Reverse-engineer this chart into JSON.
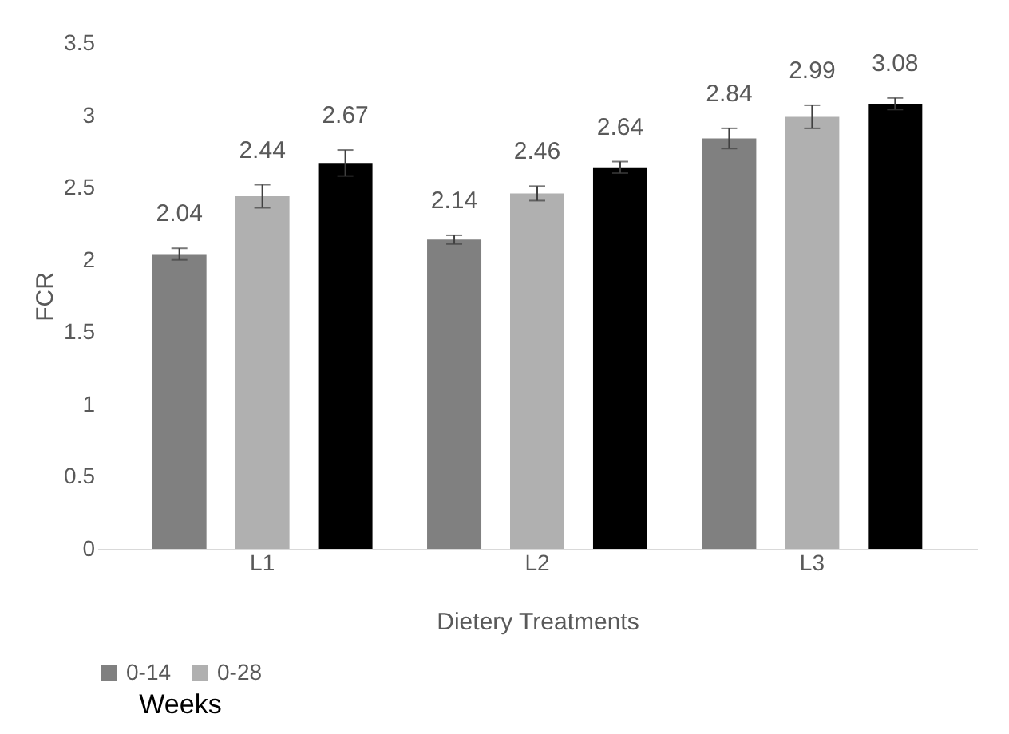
{
  "chart_data": {
    "type": "bar",
    "xlabel": "Dietery Treatments",
    "ylabel": "FCR",
    "legend_title": "Weeks",
    "categories": [
      "L1",
      "L2",
      "L3"
    ],
    "series": [
      {
        "name": "0-14",
        "color": "#808080",
        "values": [
          2.04,
          2.14,
          2.84
        ],
        "errors": [
          0.04,
          0.03,
          0.07
        ]
      },
      {
        "name": "0-28",
        "color": "#b0b0b0",
        "values": [
          2.44,
          2.46,
          2.99
        ],
        "errors": [
          0.08,
          0.05,
          0.08
        ]
      },
      {
        "color": "#000000",
        "values": [
          2.67,
          2.64,
          3.08
        ],
        "errors": [
          0.09,
          0.04,
          0.04
        ]
      }
    ],
    "ylim": [
      0,
      3.5
    ],
    "yticks": [
      0,
      0.5,
      1,
      1.5,
      2,
      2.5,
      3,
      3.5
    ],
    "grid": false,
    "legend": "bottom",
    "data_labels": true
  }
}
